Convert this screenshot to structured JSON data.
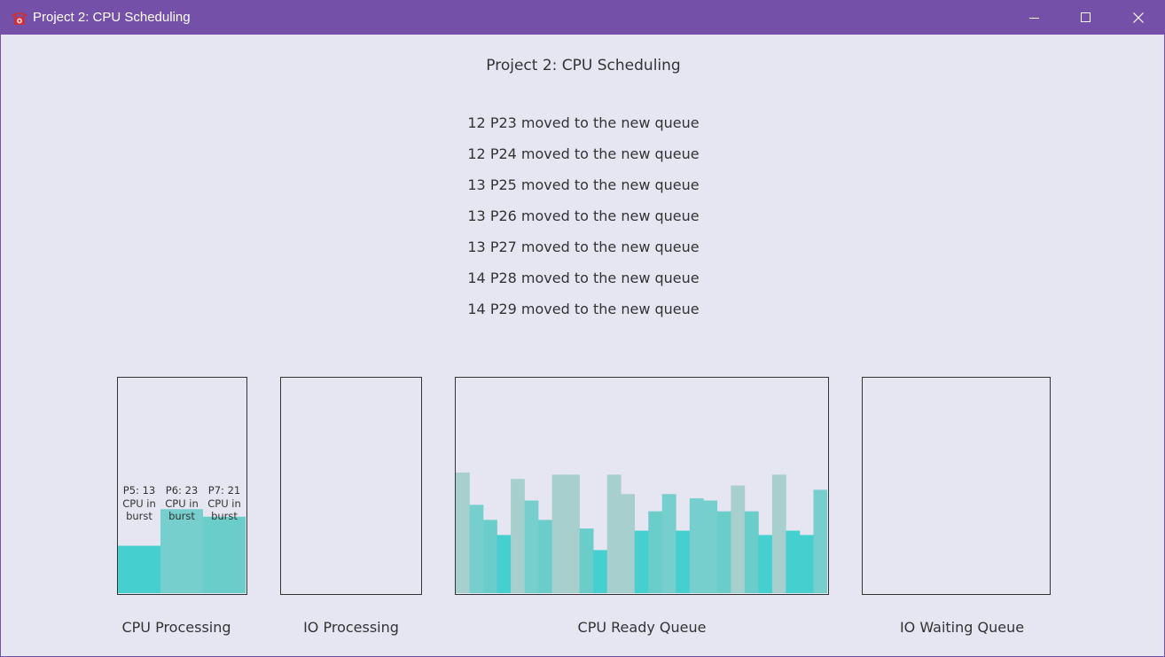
{
  "window": {
    "title": "Project 2: CPU Scheduling",
    "titlebar_color": "#7550a8",
    "background_color": "#e6e6f2"
  },
  "heading": "Project 2: CPU Scheduling",
  "log": [
    "12 P23 moved to the new queue",
    "12 P24 moved to the new queue",
    "13 P25 moved to the new queue",
    "13 P26 moved to the new queue",
    "13 P27 moved to the new queue",
    "14 P28 moved to the new queue",
    "14 P29 moved to the new queue"
  ],
  "panels": {
    "cpu_processing": {
      "label": "CPU Processing",
      "processes": [
        {
          "text": "P5: 13 CPU in burst",
          "lines": [
            "P5: 13",
            "CPU in",
            "burst"
          ],
          "level": 0.22,
          "color": "#45cfcf"
        },
        {
          "text": "P6: 23 CPU in burst",
          "lines": [
            "P6: 23",
            "CPU in",
            "burst"
          ],
          "level": 0.39,
          "color": "#76cfcd"
        },
        {
          "text": "P7: 21 CPU in burst",
          "lines": [
            "P7: 21",
            "CPU in",
            "burst"
          ],
          "level": 0.355,
          "color": "#6acdc9"
        }
      ]
    },
    "io_processing": {
      "label": "IO Processing"
    },
    "cpu_ready_queue": {
      "label": "CPU Ready Queue",
      "bar_levels": [
        0.56,
        0.41,
        0.34,
        0.27,
        0.53,
        0.43,
        0.34,
        0.55,
        0.55,
        0.3,
        0.2,
        0.55,
        0.46,
        0.29,
        0.38,
        0.46,
        0.29,
        0.44,
        0.43,
        0.38,
        0.5,
        0.38,
        0.27,
        0.55,
        0.29,
        0.27,
        0.48
      ],
      "bar_colors": [
        "#a6cfcd",
        "#76cfcd",
        "#6acdc9",
        "#45cfcf",
        "#a6cfcd",
        "#76cfcd",
        "#6acdc9",
        "#a6cfcd",
        "#a6cfcd",
        "#6acdc9",
        "#45cfcf",
        "#a6cfcd",
        "#a6cfcd",
        "#45cfcf",
        "#6acdc9",
        "#76cfcd",
        "#45cfcf",
        "#76cfcd",
        "#76cfcd",
        "#6acdc9",
        "#a6cfcd",
        "#6acdc9",
        "#45cfcf",
        "#a6cfcd",
        "#45cfcf",
        "#45cfcf",
        "#76cfcd"
      ]
    },
    "io_waiting_queue": {
      "label": "IO Waiting Queue"
    }
  }
}
